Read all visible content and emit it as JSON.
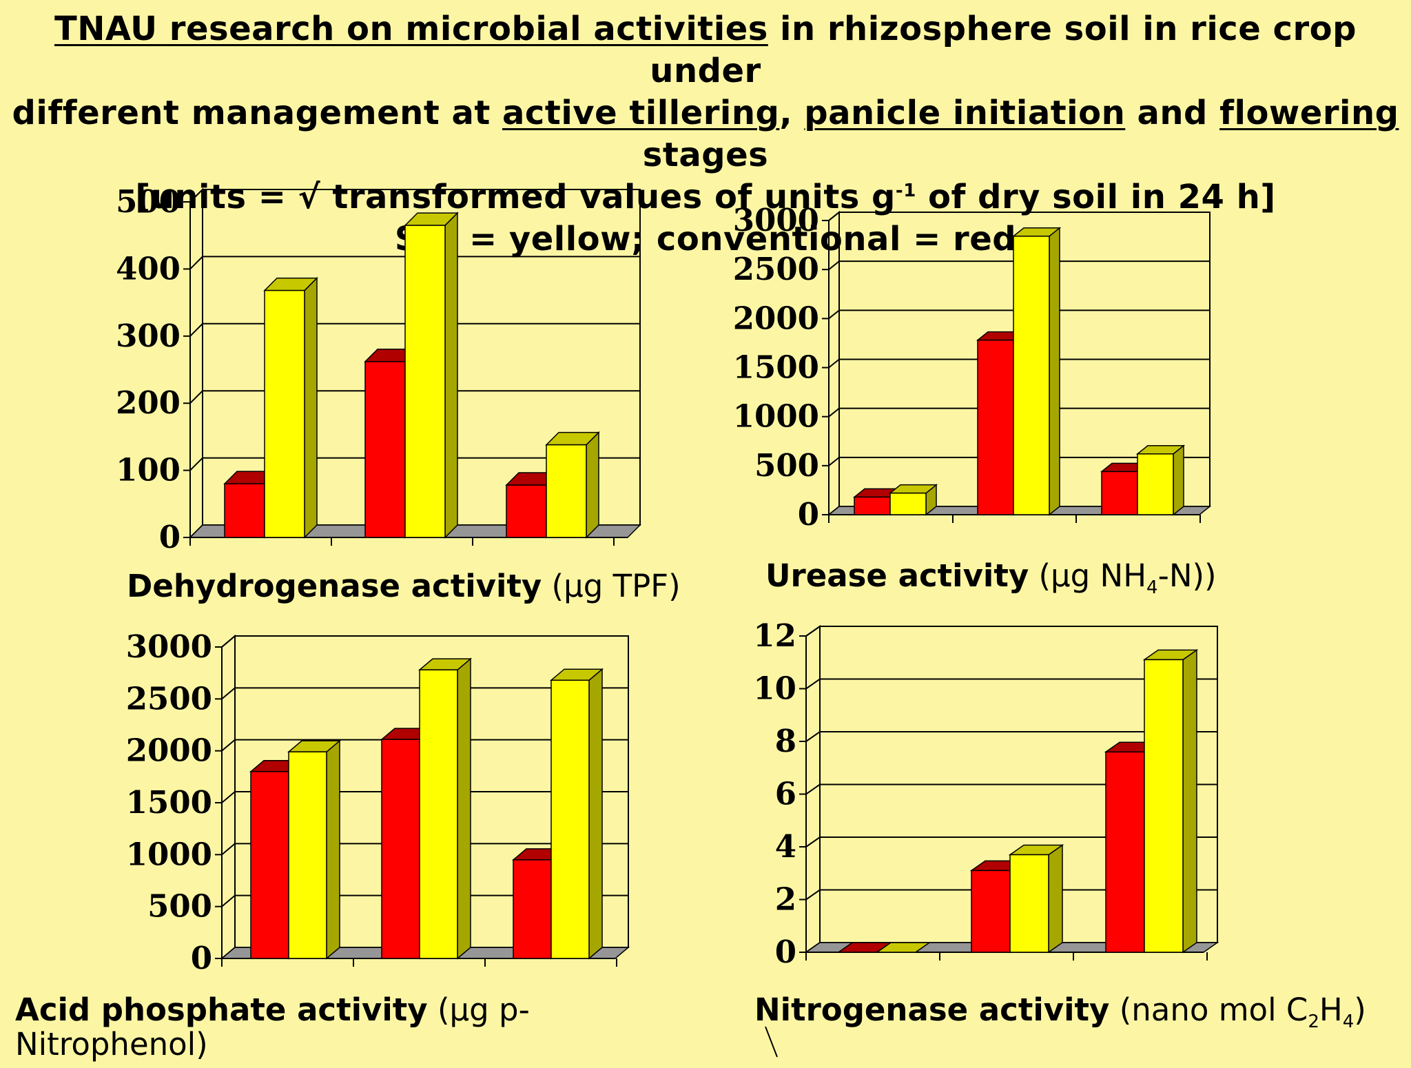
{
  "title": {
    "line1_u": "TNAU research on microbial activities",
    "line1_rest": " in rhizosphere soil in rice crop under",
    "line2_a": "different management at ",
    "line2_u1": "active tillering",
    "line2_b": ", ",
    "line2_u2": "panicle initiation",
    "line2_c": " and ",
    "line2_u3": "flowering",
    "line2_d": " stages",
    "line3_a": "[units = √ transformed values of units g",
    "line3_sup": "-1",
    "line3_b": " of dry soil in 24 h]",
    "line4": "SRI = yellow; conventional = red"
  },
  "colors": {
    "background": "#fcf6a4",
    "sri": "#ffff00",
    "conventional": "#ff0000",
    "floor": "#969696"
  },
  "chart_data": [
    {
      "type": "bar",
      "title": "Dehydrogenase activity (µg TPF)",
      "categories": [
        "",
        "",
        ""
      ],
      "ylim": [
        0,
        500
      ],
      "ticks": [
        "0",
        "100",
        "200",
        "300",
        "400",
        "500"
      ],
      "series": [
        {
          "color": "red",
          "values": [
            80,
            262,
            78
          ]
        },
        {
          "color": "yellow",
          "values": [
            368,
            465,
            138
          ]
        }
      ],
      "grid": true,
      "legend": "none"
    },
    {
      "type": "bar",
      "title": "Urease activity (µg NH4-N))",
      "categories": [
        "",
        "",
        ""
      ],
      "ylim": [
        0,
        3000
      ],
      "ticks": [
        "0",
        "500",
        "1000",
        "1500",
        "2000",
        "2500",
        "3000"
      ],
      "series": [
        {
          "color": "red",
          "values": [
            180,
            1780,
            440
          ]
        },
        {
          "color": "yellow",
          "values": [
            220,
            2840,
            620
          ]
        }
      ],
      "grid": true,
      "legend": "none"
    },
    {
      "type": "bar",
      "title": "Acid phosphate activity (µg p-Nitrophenol)",
      "categories": [
        "",
        "",
        ""
      ],
      "ylim": [
        0,
        3000
      ],
      "ticks": [
        "0",
        "500",
        "1000",
        "1500",
        "2000",
        "2500",
        "3000"
      ],
      "series": [
        {
          "color": "red",
          "values": [
            1800,
            2110,
            950
          ]
        },
        {
          "color": "yellow",
          "values": [
            1990,
            2780,
            2680
          ]
        }
      ],
      "grid": true,
      "legend": "none"
    },
    {
      "type": "bar",
      "title": "Nitrogenase activity (nano mol C2H4)",
      "categories": [
        "",
        "",
        ""
      ],
      "ylim": [
        0,
        12
      ],
      "ticks": [
        "0",
        "2",
        "4",
        "6",
        "8",
        "10",
        "12"
      ],
      "series": [
        {
          "color": "red",
          "values": [
            0,
            3.1,
            7.6
          ]
        },
        {
          "color": "yellow",
          "values": [
            0,
            3.7,
            11.1
          ]
        }
      ],
      "grid": true,
      "legend": "none"
    }
  ],
  "captions": {
    "c1_bold": "Dehydrogenase activity",
    "c1_rest": " (µg TPF)",
    "c2_bold": "Urease activity",
    "c2_rest_a": " (µg NH",
    "c2_sub": "4",
    "c2_rest_b": "-N))",
    "c3_bold": "Acid phosphate activity",
    "c3_rest": " (µg p-",
    "c3_line2": "Nitrophenol)",
    "c4_bold": "Nitrogenase activity",
    "c4_rest_a": " (nano mol C",
    "c4_sub1": "2",
    "c4_rest_b": "H",
    "c4_sub2": "4",
    "c4_rest_c": ")"
  }
}
